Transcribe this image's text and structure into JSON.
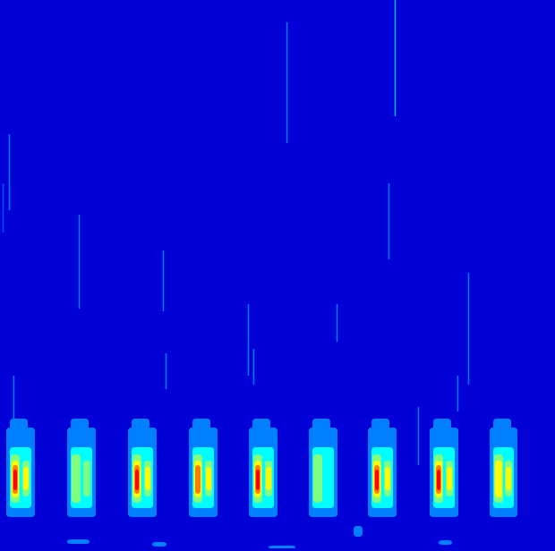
{
  "chart_data": {
    "type": "heatmap",
    "tick_labels": false,
    "xlim": [
      0,
      620
    ],
    "ylim": [
      0,
      616
    ],
    "colorlim": [
      0,
      1
    ],
    "background": 0.08,
    "regions": [
      [
        7,
        478,
        39,
        578,
        0.25
      ],
      [
        11,
        468,
        31,
        500,
        0.25
      ],
      [
        11,
        500,
        35,
        568,
        0.375
      ],
      [
        12,
        508,
        22,
        562,
        0.5
      ],
      [
        13,
        515,
        21,
        556,
        0.625
      ],
      [
        14,
        520,
        20,
        552,
        0.75
      ],
      [
        15,
        525,
        19,
        548,
        0.875
      ],
      [
        25,
        515,
        33,
        555,
        0.5
      ],
      [
        26,
        522,
        32,
        548,
        0.625
      ],
      [
        75,
        478,
        107,
        578,
        0.25
      ],
      [
        79,
        468,
        99,
        500,
        0.25
      ],
      [
        79,
        500,
        103,
        568,
        0.375
      ],
      [
        80,
        508,
        90,
        562,
        0.5
      ],
      [
        93,
        515,
        101,
        555,
        0.5
      ],
      [
        143,
        478,
        175,
        578,
        0.25
      ],
      [
        147,
        468,
        167,
        500,
        0.25
      ],
      [
        147,
        500,
        171,
        568,
        0.375
      ],
      [
        148,
        508,
        158,
        562,
        0.5
      ],
      [
        149,
        515,
        157,
        556,
        0.625
      ],
      [
        150,
        520,
        156,
        552,
        0.75
      ],
      [
        151,
        525,
        155,
        548,
        0.875
      ],
      [
        161,
        515,
        169,
        555,
        0.5
      ],
      [
        162,
        522,
        168,
        548,
        0.625
      ],
      [
        211,
        478,
        243,
        578,
        0.25
      ],
      [
        215,
        468,
        235,
        500,
        0.25
      ],
      [
        215,
        500,
        239,
        568,
        0.375
      ],
      [
        216,
        508,
        226,
        562,
        0.5
      ],
      [
        217,
        515,
        225,
        556,
        0.625
      ],
      [
        218,
        520,
        224,
        552,
        0.75
      ],
      [
        229,
        515,
        237,
        555,
        0.5
      ],
      [
        230,
        522,
        236,
        548,
        0.625
      ],
      [
        278,
        478,
        310,
        578,
        0.25
      ],
      [
        282,
        468,
        302,
        500,
        0.25
      ],
      [
        282,
        500,
        306,
        568,
        0.375
      ],
      [
        283,
        508,
        293,
        562,
        0.5
      ],
      [
        284,
        515,
        292,
        556,
        0.625
      ],
      [
        285,
        520,
        291,
        552,
        0.75
      ],
      [
        286,
        525,
        290,
        548,
        0.875
      ],
      [
        296,
        515,
        304,
        555,
        0.5
      ],
      [
        297,
        522,
        303,
        548,
        0.625
      ],
      [
        345,
        478,
        377,
        578,
        0.25
      ],
      [
        349,
        468,
        369,
        500,
        0.25
      ],
      [
        349,
        500,
        373,
        568,
        0.375
      ],
      [
        350,
        508,
        360,
        562,
        0.5
      ],
      [
        411,
        478,
        443,
        578,
        0.25
      ],
      [
        415,
        468,
        435,
        500,
        0.25
      ],
      [
        415,
        500,
        439,
        568,
        0.375
      ],
      [
        416,
        508,
        426,
        562,
        0.5
      ],
      [
        417,
        515,
        425,
        556,
        0.625
      ],
      [
        418,
        520,
        424,
        552,
        0.75
      ],
      [
        419,
        525,
        423,
        548,
        0.875
      ],
      [
        429,
        515,
        437,
        555,
        0.5
      ],
      [
        430,
        522,
        436,
        548,
        0.625
      ],
      [
        480,
        478,
        512,
        578,
        0.25
      ],
      [
        484,
        468,
        504,
        500,
        0.25
      ],
      [
        484,
        500,
        508,
        568,
        0.375
      ],
      [
        485,
        508,
        495,
        562,
        0.5
      ],
      [
        486,
        515,
        494,
        556,
        0.625
      ],
      [
        487,
        520,
        493,
        552,
        0.75
      ],
      [
        488,
        525,
        492,
        548,
        0.875
      ],
      [
        498,
        515,
        506,
        555,
        0.5
      ],
      [
        499,
        522,
        505,
        548,
        0.625
      ],
      [
        547,
        478,
        578,
        578,
        0.25
      ],
      [
        551,
        468,
        571,
        500,
        0.25
      ],
      [
        551,
        500,
        574,
        568,
        0.375
      ],
      [
        552,
        508,
        562,
        562,
        0.5
      ],
      [
        553,
        515,
        561,
        556,
        0.625
      ],
      [
        564,
        515,
        572,
        555,
        0.5
      ],
      [
        565,
        522,
        571,
        548,
        0.625
      ],
      [
        75,
        603,
        100,
        608,
        0.25
      ],
      [
        170,
        606,
        186,
        611,
        0.25
      ],
      [
        395,
        588,
        405,
        600,
        0.25
      ],
      [
        300,
        610,
        330,
        613,
        0.25
      ],
      [
        490,
        604,
        505,
        609,
        0.25
      ]
    ],
    "streaks": [
      [
        320,
        25,
        160,
        0.25
      ],
      [
        441,
        0,
        130,
        0.3
      ],
      [
        10,
        150,
        235,
        0.25
      ],
      [
        3,
        205,
        260,
        0.2
      ],
      [
        88,
        240,
        345,
        0.25
      ],
      [
        182,
        280,
        348,
        0.25
      ],
      [
        185,
        395,
        435,
        0.25
      ],
      [
        277,
        340,
        420,
        0.25
      ],
      [
        283,
        390,
        430,
        0.25
      ],
      [
        376,
        340,
        382,
        0.25
      ],
      [
        434,
        205,
        290,
        0.25
      ],
      [
        523,
        305,
        430,
        0.25
      ],
      [
        511,
        420,
        460,
        0.25
      ],
      [
        467,
        455,
        520,
        0.25
      ],
      [
        15,
        420,
        480,
        0.25
      ]
    ]
  }
}
